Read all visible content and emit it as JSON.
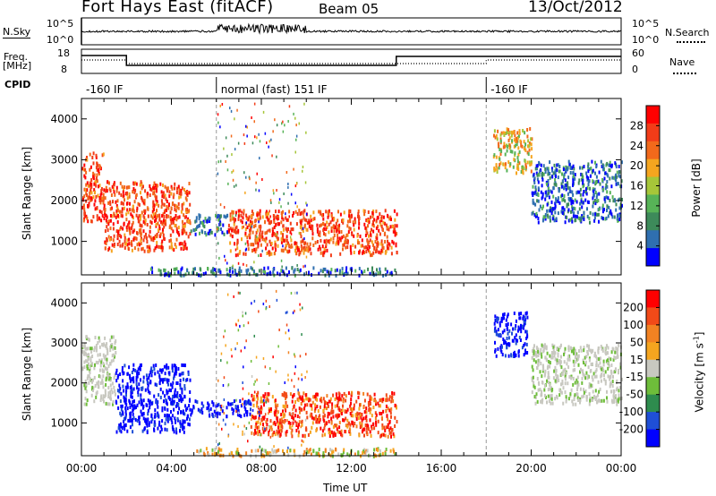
{
  "header": {
    "title": "Fort Hays East (fitACF)",
    "beam": "Beam 05",
    "date": "13/Oct/2012"
  },
  "labels": {
    "nsky": "N.Sky",
    "nsearch": "N.Search",
    "freq": "Freq.",
    "freq_unit": "[MHz]",
    "nave": "Nave",
    "cpid": "CPID",
    "ylabel": "Slant Range [km]",
    "xlabel": "Time UT"
  },
  "noise_panel": {
    "left_ticks": [
      "10^5",
      "10^0"
    ],
    "right_ticks": [
      "10^5",
      "10^0"
    ]
  },
  "freq_panel": {
    "left_ticks": [
      "18",
      "8"
    ],
    "right_ticks": [
      "60",
      "0"
    ]
  },
  "cpid_segments": [
    {
      "start_hour": 0.0,
      "label": "-160 IF"
    },
    {
      "start_hour": 6.0,
      "label": "normal (fast) 151 IF"
    },
    {
      "start_hour": 18.0,
      "label": "-160 IF"
    }
  ],
  "colors": {
    "power": [
      "#0000ff",
      "#2f6fb0",
      "#3d8a5a",
      "#57b357",
      "#a6c639",
      "#f5a51f",
      "#f2691b",
      "#f23c18",
      "#ff0000"
    ],
    "velocity": [
      "#0000ff",
      "#1f4fd6",
      "#2e8c4e",
      "#6ebd3a",
      "#c8c8c0",
      "#f5a51f",
      "#f28222",
      "#f24a18",
      "#ff0000"
    ]
  },
  "chart_data": [
    {
      "type": "heatmap",
      "name": "Power",
      "colorbar_label": "Power [dB]",
      "colorbar_ticks": [
        "28",
        "24",
        "20",
        "16",
        "12",
        "8",
        "4"
      ],
      "ylabel": "Slant Range [km]",
      "ylim": [
        180,
        4500
      ],
      "yticks": [
        "4000",
        "3000",
        "2000",
        "1000"
      ],
      "xlim": [
        "00:00",
        "24:00"
      ],
      "xticks": [
        "00:00",
        "04:00",
        "08:00",
        "12:00",
        "16:00",
        "20:00",
        "00:00"
      ],
      "regions": [
        {
          "t": [
            0.0,
            1.0
          ],
          "r": [
            1500,
            3200
          ],
          "level": "high"
        },
        {
          "t": [
            1.0,
            4.8
          ],
          "r": [
            800,
            2500
          ],
          "level": "high"
        },
        {
          "t": [
            4.8,
            6.5
          ],
          "r": [
            1200,
            1700
          ],
          "level": "low"
        },
        {
          "t": [
            6.5,
            14.0
          ],
          "r": [
            700,
            1800
          ],
          "level": "high"
        },
        {
          "t": [
            18.3,
            20.0
          ],
          "r": [
            2700,
            3800
          ],
          "level": "mid"
        },
        {
          "t": [
            20.0,
            24.0
          ],
          "r": [
            1500,
            3000
          ],
          "level": "low"
        },
        {
          "t": [
            3.0,
            14.0
          ],
          "r": [
            200,
            400
          ],
          "level": "low"
        }
      ]
    },
    {
      "type": "heatmap",
      "name": "Velocity",
      "colorbar_label": "Velocity [m s-1]",
      "colorbar_ticks": [
        "200",
        "100",
        "50",
        "15",
        "-15",
        "-50",
        "-100",
        "-200"
      ],
      "ylabel": "Slant Range [km]",
      "ylim": [
        180,
        4500
      ],
      "yticks": [
        "4000",
        "3000",
        "2000",
        "1000"
      ],
      "xlim": [
        "00:00",
        "24:00"
      ],
      "xticks": [
        "00:00",
        "04:00",
        "08:00",
        "12:00",
        "16:00",
        "20:00",
        "00:00"
      ],
      "regions": [
        {
          "t": [
            0.0,
            1.5
          ],
          "r": [
            1500,
            3200
          ],
          "level": "ground"
        },
        {
          "t": [
            1.5,
            4.8
          ],
          "r": [
            800,
            2500
          ],
          "level": "toward"
        },
        {
          "t": [
            4.8,
            7.5
          ],
          "r": [
            1200,
            1600
          ],
          "level": "toward"
        },
        {
          "t": [
            7.5,
            14.0
          ],
          "r": [
            700,
            1800
          ],
          "level": "away"
        },
        {
          "t": [
            18.3,
            19.8
          ],
          "r": [
            2700,
            3800
          ],
          "level": "toward"
        },
        {
          "t": [
            20.0,
            24.0
          ],
          "r": [
            1500,
            3000
          ],
          "level": "ground"
        },
        {
          "t": [
            5.0,
            14.0
          ],
          "r": [
            200,
            400
          ],
          "level": "low"
        }
      ]
    }
  ]
}
